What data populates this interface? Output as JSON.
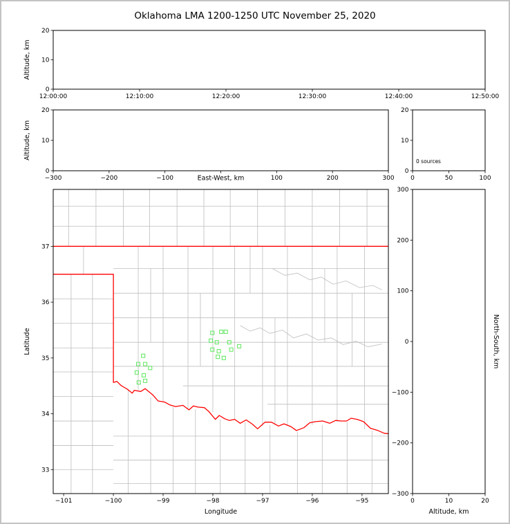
{
  "title": "Oklahoma LMA 1200-1250 UTC November 25, 2020",
  "chart_data": [
    {
      "id": "time_height",
      "type": "scatter",
      "xlabel": "",
      "ylabel": "Altitude, km",
      "x_ticks": {
        "labels": [
          "12:00:00",
          "12:10:00",
          "12:20:00",
          "12:30:00",
          "12:40:00",
          "12:50:00"
        ],
        "values": [
          0,
          600,
          1200,
          1800,
          2400,
          3000
        ]
      },
      "xlim": [
        0,
        3000
      ],
      "y_ticks": {
        "labels": [
          "0",
          "10",
          "20"
        ],
        "values": [
          0,
          10,
          20
        ]
      },
      "ylim": [
        0,
        20
      ],
      "points": []
    },
    {
      "id": "ew_height",
      "type": "scatter",
      "xlabel": "East-West, km",
      "ylabel": "Altitude, km",
      "x_ticks": {
        "labels": [
          "−300",
          "−200",
          "−100",
          "0",
          "100",
          "200",
          "300"
        ],
        "values": [
          -300,
          -200,
          -100,
          0,
          100,
          200,
          300
        ]
      },
      "xlim": [
        -300,
        300
      ],
      "y_ticks": {
        "labels": [
          "0",
          "10",
          "20"
        ],
        "values": [
          0,
          10,
          20
        ]
      },
      "ylim": [
        0,
        20
      ],
      "points": []
    },
    {
      "id": "source_histogram",
      "type": "line",
      "xlabel": "",
      "ylabel": "",
      "x_ticks": {
        "labels": [
          "0",
          "50",
          "100"
        ],
        "values": [
          0,
          50,
          100
        ]
      },
      "xlim": [
        0,
        100
      ],
      "y_ticks": {
        "labels": [
          "0",
          "10",
          "20"
        ],
        "values": [
          0,
          10,
          20
        ]
      },
      "ylim": [
        0,
        20
      ],
      "annotation": "0 sources",
      "values": []
    },
    {
      "id": "plan_view_map",
      "type": "scatter",
      "xlabel": "Longitude",
      "ylabel": "Latitude",
      "x_ticks": {
        "labels": [
          "−101",
          "−100",
          "−99",
          "−98",
          "−97",
          "−96",
          "−95"
        ],
        "values": [
          -101,
          -100,
          -99,
          -98,
          -97,
          -96,
          -95
        ]
      },
      "xlim": [
        -101.21,
        -94.47
      ],
      "y_ticks": {
        "labels": [
          "33",
          "34",
          "35",
          "36",
          "37"
        ],
        "values": [
          33,
          34,
          35,
          36,
          37
        ]
      },
      "ylim": [
        32.57,
        38.02
      ],
      "colors": {
        "state_border": "#ff0000",
        "county": "#bdbdbd",
        "station": "#5ce65c"
      },
      "stations": [
        [
          -98.01,
          35.45
        ],
        [
          -97.83,
          35.47
        ],
        [
          -97.74,
          35.47
        ],
        [
          -98.04,
          35.31
        ],
        [
          -97.92,
          35.28
        ],
        [
          -97.67,
          35.28
        ],
        [
          -98.01,
          35.15
        ],
        [
          -97.88,
          35.12
        ],
        [
          -97.63,
          35.15
        ],
        [
          -97.47,
          35.21
        ],
        [
          -97.9,
          35.02
        ],
        [
          -97.78,
          35.0
        ],
        [
          -99.4,
          35.04
        ],
        [
          -99.5,
          34.89
        ],
        [
          -99.36,
          34.89
        ],
        [
          -99.26,
          34.82
        ],
        [
          -99.53,
          34.74
        ],
        [
          -99.39,
          34.69
        ],
        [
          -99.49,
          34.56
        ],
        [
          -99.36,
          34.59
        ]
      ],
      "state_border": [
        [
          [
            -101.25,
            37.0
          ],
          [
            -94.43,
            37.0
          ]
        ],
        [
          [
            -101.25,
            36.5
          ],
          [
            -100.0,
            36.5
          ],
          [
            -100.0,
            34.56
          ],
          [
            -99.93,
            34.58
          ],
          [
            -99.85,
            34.51
          ],
          [
            -99.72,
            34.44
          ],
          [
            -99.62,
            34.37
          ],
          [
            -99.58,
            34.42
          ],
          [
            -99.45,
            34.4
          ],
          [
            -99.36,
            34.45
          ],
          [
            -99.21,
            34.34
          ],
          [
            -99.1,
            34.23
          ],
          [
            -98.97,
            34.21
          ],
          [
            -98.87,
            34.16
          ],
          [
            -98.75,
            34.13
          ],
          [
            -98.6,
            34.15
          ],
          [
            -98.48,
            34.07
          ],
          [
            -98.39,
            34.14
          ],
          [
            -98.3,
            34.12
          ],
          [
            -98.17,
            34.11
          ],
          [
            -98.08,
            34.04
          ],
          [
            -97.95,
            33.9
          ],
          [
            -97.87,
            33.97
          ],
          [
            -97.76,
            33.91
          ],
          [
            -97.67,
            33.88
          ],
          [
            -97.56,
            33.9
          ],
          [
            -97.45,
            33.83
          ],
          [
            -97.33,
            33.89
          ],
          [
            -97.2,
            33.81
          ],
          [
            -97.1,
            33.73
          ],
          [
            -96.95,
            33.85
          ],
          [
            -96.82,
            33.85
          ],
          [
            -96.68,
            33.78
          ],
          [
            -96.57,
            33.82
          ],
          [
            -96.43,
            33.77
          ],
          [
            -96.32,
            33.7
          ],
          [
            -96.17,
            33.75
          ],
          [
            -96.05,
            33.84
          ],
          [
            -95.93,
            33.86
          ],
          [
            -95.79,
            33.87
          ],
          [
            -95.65,
            33.83
          ],
          [
            -95.53,
            33.88
          ],
          [
            -95.42,
            33.87
          ],
          [
            -95.31,
            33.87
          ],
          [
            -95.22,
            33.92
          ],
          [
            -95.1,
            33.9
          ],
          [
            -94.97,
            33.86
          ],
          [
            -94.83,
            33.74
          ],
          [
            -94.68,
            33.7
          ],
          [
            -94.55,
            33.65
          ],
          [
            -94.43,
            33.64
          ]
        ]
      ],
      "county_lines": {
        "vertical": [
          {
            "lon": -100.9,
            "lat1": 37.0,
            "lat2": 38.05
          },
          {
            "lon": -100.35,
            "lat1": 37.0,
            "lat2": 38.05
          },
          {
            "lon": -99.8,
            "lat1": 37.0,
            "lat2": 38.05
          },
          {
            "lon": -99.27,
            "lat1": 37.0,
            "lat2": 38.05
          },
          {
            "lon": -98.72,
            "lat1": 37.0,
            "lat2": 38.05
          },
          {
            "lon": -98.18,
            "lat1": 37.0,
            "lat2": 38.05
          },
          {
            "lon": -97.65,
            "lat1": 37.0,
            "lat2": 38.05
          },
          {
            "lon": -97.1,
            "lat1": 37.0,
            "lat2": 38.05
          },
          {
            "lon": -96.55,
            "lat1": 37.0,
            "lat2": 38.05
          },
          {
            "lon": -96.0,
            "lat1": 37.0,
            "lat2": 38.05
          },
          {
            "lon": -95.45,
            "lat1": 37.0,
            "lat2": 38.05
          },
          {
            "lon": -94.9,
            "lat1": 37.0,
            "lat2": 38.05
          },
          {
            "lon": -100.6,
            "lat1": 36.5,
            "lat2": 37.0
          },
          {
            "lon": -99.5,
            "lat1": 34.42,
            "lat2": 37.0
          },
          {
            "lon": -99.0,
            "lat1": 34.21,
            "lat2": 37.0
          },
          {
            "lon": -98.5,
            "lat1": 34.08,
            "lat2": 37.0
          },
          {
            "lon": -98.0,
            "lat1": 34.03,
            "lat2": 37.0
          },
          {
            "lon": -97.56,
            "lat1": 33.9,
            "lat2": 37.0
          },
          {
            "lon": -97.0,
            "lat1": 33.78,
            "lat2": 37.0
          },
          {
            "lon": -96.5,
            "lat1": 33.78,
            "lat2": 37.0
          },
          {
            "lon": -96.0,
            "lat1": 33.8,
            "lat2": 37.0
          },
          {
            "lon": -95.5,
            "lat1": 33.85,
            "lat2": 37.0
          },
          {
            "lon": -94.95,
            "lat1": 33.72,
            "lat2": 37.0
          },
          {
            "lon": -99.25,
            "lat1": 35.28,
            "lat2": 36.6
          },
          {
            "lon": -98.25,
            "lat1": 34.85,
            "lat2": 36.16
          },
          {
            "lon": -97.25,
            "lat1": 36.16,
            "lat2": 37.0
          },
          {
            "lon": -96.75,
            "lat1": 33.8,
            "lat2": 35.72
          },
          {
            "lon": -95.75,
            "lat1": 35.28,
            "lat2": 36.6
          },
          {
            "lon": -95.2,
            "lat1": 34.85,
            "lat2": 36.16
          },
          {
            "lon": -100.42,
            "lat1": 32.57,
            "lat2": 36.5
          },
          {
            "lon": -100.85,
            "lat1": 32.57,
            "lat2": 36.5
          },
          {
            "lon": -99.7,
            "lat1": 32.57,
            "lat2": 34.45
          },
          {
            "lon": -99.25,
            "lat1": 32.57,
            "lat2": 34.3
          },
          {
            "lon": -98.8,
            "lat1": 32.57,
            "lat2": 34.12
          },
          {
            "lon": -98.35,
            "lat1": 32.57,
            "lat2": 34.08
          },
          {
            "lon": -97.85,
            "lat1": 32.57,
            "lat2": 33.9
          },
          {
            "lon": -97.35,
            "lat1": 32.57,
            "lat2": 33.85
          },
          {
            "lon": -96.85,
            "lat1": 32.57,
            "lat2": 33.8
          },
          {
            "lon": -96.3,
            "lat1": 32.57,
            "lat2": 33.68
          },
          {
            "lon": -95.8,
            "lat1": 32.57,
            "lat2": 33.8
          },
          {
            "lon": -95.3,
            "lat1": 32.57,
            "lat2": 33.85
          },
          {
            "lon": -94.8,
            "lat1": 32.57,
            "lat2": 33.7
          }
        ],
        "horizontal": [
          {
            "lat": 37.72,
            "lon1": -101.25,
            "lon2": -94.4
          },
          {
            "lat": 37.36,
            "lon1": -101.25,
            "lon2": -94.4
          },
          {
            "lat": 36.6,
            "lon1": -100.0,
            "lon2": -94.4
          },
          {
            "lat": 36.16,
            "lon1": -100.0,
            "lon2": -94.4
          },
          {
            "lat": 35.72,
            "lon1": -100.0,
            "lon2": -94.4
          },
          {
            "lat": 35.28,
            "lon1": -100.0,
            "lon2": -94.4
          },
          {
            "lat": 34.85,
            "lon1": -100.0,
            "lon2": -94.4
          },
          {
            "lat": 34.5,
            "lon1": -98.6,
            "lon2": -94.4
          },
          {
            "lat": 34.17,
            "lon1": -96.9,
            "lon2": -94.4
          },
          {
            "lat": 36.06,
            "lon1": -101.25,
            "lon2": -100.0
          },
          {
            "lat": 35.62,
            "lon1": -101.25,
            "lon2": -100.0
          },
          {
            "lat": 35.18,
            "lon1": -101.25,
            "lon2": -100.0
          },
          {
            "lat": 34.75,
            "lon1": -101.25,
            "lon2": -100.0
          },
          {
            "lat": 34.31,
            "lon1": -101.25,
            "lon2": -100.0
          },
          {
            "lat": 33.87,
            "lon1": -101.25,
            "lon2": -100.0
          },
          {
            "lat": 33.43,
            "lon1": -101.25,
            "lon2": -100.0
          },
          {
            "lat": 33.0,
            "lon1": -101.25,
            "lon2": -100.0
          },
          {
            "lat": 33.6,
            "lon1": -100.0,
            "lon2": -94.4
          },
          {
            "lat": 33.17,
            "lon1": -100.0,
            "lon2": -94.4
          },
          {
            "lat": 32.75,
            "lon1": -100.0,
            "lon2": -94.4
          }
        ]
      },
      "rivers": [
        [
          [
            -97.45,
            35.58
          ],
          [
            -97.25,
            35.48
          ],
          [
            -97.05,
            35.54
          ],
          [
            -96.85,
            35.44
          ],
          [
            -96.6,
            35.5
          ],
          [
            -96.38,
            35.36
          ],
          [
            -96.12,
            35.43
          ],
          [
            -95.88,
            35.32
          ],
          [
            -95.62,
            35.36
          ],
          [
            -95.38,
            35.24
          ],
          [
            -95.12,
            35.3
          ],
          [
            -94.88,
            35.2
          ],
          [
            -94.6,
            35.25
          ]
        ],
        [
          [
            -96.8,
            36.6
          ],
          [
            -96.55,
            36.48
          ],
          [
            -96.3,
            36.52
          ],
          [
            -96.05,
            36.4
          ],
          [
            -95.82,
            36.45
          ],
          [
            -95.58,
            36.32
          ],
          [
            -95.32,
            36.38
          ],
          [
            -95.05,
            36.26
          ],
          [
            -94.78,
            36.3
          ],
          [
            -94.6,
            36.22
          ]
        ]
      ]
    },
    {
      "id": "ns_height",
      "type": "scatter",
      "xlabel": "Altitude, km",
      "ylabel_right": "North-South, km",
      "x_ticks": {
        "labels": [
          "0",
          "10",
          "20"
        ],
        "values": [
          0,
          10,
          20
        ]
      },
      "xlim": [
        0,
        20
      ],
      "y_ticks": {
        "labels": [
          "−300",
          "−200",
          "−100",
          "0",
          "100",
          "200",
          "300"
        ],
        "values": [
          -300,
          -200,
          -100,
          0,
          100,
          200,
          300
        ]
      },
      "ylim": [
        -300,
        300
      ],
      "points": []
    }
  ]
}
